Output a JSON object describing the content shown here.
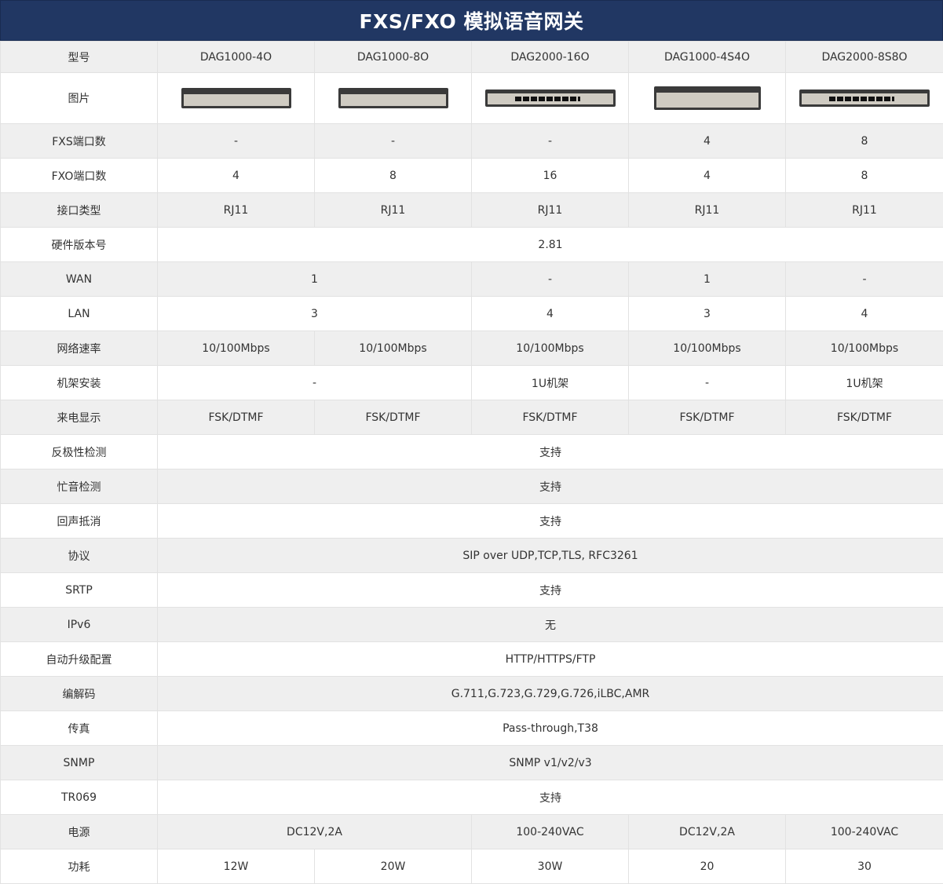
{
  "title": "FXS/FXO 模拟语音网关",
  "models": [
    "DAG1000-4O",
    "DAG1000-8O",
    "DAG2000-16O",
    "DAG1000-4S4O",
    "DAG2000-8S8O"
  ],
  "header_label": "型号",
  "image_label": "图片",
  "device_images": [
    {
      "model": "DAG1000-4O",
      "style": "compact",
      "ports": 0
    },
    {
      "model": "DAG1000-8O",
      "style": "compact",
      "ports": 0
    },
    {
      "model": "DAG2000-16O",
      "style": "rack",
      "ports": 16
    },
    {
      "model": "DAG1000-4S4O",
      "style": "tall",
      "ports": 0
    },
    {
      "model": "DAG2000-8S8O",
      "style": "rack",
      "ports": 16
    }
  ],
  "rows": [
    {
      "label": "FXS端口数",
      "cells": [
        {
          "text": "-",
          "span": 1
        },
        {
          "text": "-",
          "span": 1
        },
        {
          "text": "-",
          "span": 1
        },
        {
          "text": "4",
          "span": 1
        },
        {
          "text": "8",
          "span": 1
        }
      ]
    },
    {
      "label": "FXO端口数",
      "cells": [
        {
          "text": "4",
          "span": 1
        },
        {
          "text": "8",
          "span": 1
        },
        {
          "text": "16",
          "span": 1
        },
        {
          "text": "4",
          "span": 1
        },
        {
          "text": "8",
          "span": 1
        }
      ]
    },
    {
      "label": "接口类型",
      "cells": [
        {
          "text": "RJ11",
          "span": 1
        },
        {
          "text": "RJ11",
          "span": 1
        },
        {
          "text": "RJ11",
          "span": 1
        },
        {
          "text": "RJ11",
          "span": 1
        },
        {
          "text": "RJ11",
          "span": 1
        }
      ]
    },
    {
      "label": "硬件版本号",
      "cells": [
        {
          "text": "2.81",
          "span": 5
        }
      ]
    },
    {
      "label": "WAN",
      "cells": [
        {
          "text": "1",
          "span": 2
        },
        {
          "text": "-",
          "span": 1
        },
        {
          "text": "1",
          "span": 1
        },
        {
          "text": "-",
          "span": 1
        }
      ]
    },
    {
      "label": "LAN",
      "cells": [
        {
          "text": "3",
          "span": 2
        },
        {
          "text": "4",
          "span": 1
        },
        {
          "text": "3",
          "span": 1
        },
        {
          "text": "4",
          "span": 1
        }
      ]
    },
    {
      "label": "网络速率",
      "cells": [
        {
          "text": "10/100Mbps",
          "span": 1
        },
        {
          "text": "10/100Mbps",
          "span": 1
        },
        {
          "text": "10/100Mbps",
          "span": 1
        },
        {
          "text": "10/100Mbps",
          "span": 1
        },
        {
          "text": "10/100Mbps",
          "span": 1
        }
      ]
    },
    {
      "label": "机架安装",
      "cells": [
        {
          "text": "-",
          "span": 2
        },
        {
          "text": "1U机架",
          "span": 1
        },
        {
          "text": "-",
          "span": 1
        },
        {
          "text": "1U机架",
          "span": 1
        }
      ]
    },
    {
      "label": "来电显示",
      "cells": [
        {
          "text": "FSK/DTMF",
          "span": 1
        },
        {
          "text": "FSK/DTMF",
          "span": 1
        },
        {
          "text": "FSK/DTMF",
          "span": 1
        },
        {
          "text": "FSK/DTMF",
          "span": 1
        },
        {
          "text": "FSK/DTMF",
          "span": 1
        }
      ]
    },
    {
      "label": "反极性检测",
      "cells": [
        {
          "text": "支持",
          "span": 5
        }
      ]
    },
    {
      "label": "忙音检测",
      "cells": [
        {
          "text": "支持",
          "span": 5
        }
      ]
    },
    {
      "label": "回声抵消",
      "cells": [
        {
          "text": "支持",
          "span": 5
        }
      ]
    },
    {
      "label": "协议",
      "cells": [
        {
          "text": "SIP over UDP,TCP,TLS, RFC3261",
          "span": 5
        }
      ]
    },
    {
      "label": "SRTP",
      "cells": [
        {
          "text": "支持",
          "span": 5
        }
      ]
    },
    {
      "label": "IPv6",
      "cells": [
        {
          "text": "无",
          "span": 5
        }
      ]
    },
    {
      "label": "自动升级配置",
      "cells": [
        {
          "text": "HTTP/HTTPS/FTP",
          "span": 5
        }
      ]
    },
    {
      "label": "编解码",
      "cells": [
        {
          "text": "G.711,G.723,G.729,G.726,iLBC,AMR",
          "span": 5
        }
      ]
    },
    {
      "label": "传真",
      "cells": [
        {
          "text": "Pass-through,T38",
          "span": 5
        }
      ]
    },
    {
      "label": "SNMP",
      "cells": [
        {
          "text": "SNMP v1/v2/v3",
          "span": 5
        }
      ]
    },
    {
      "label": "TR069",
      "cells": [
        {
          "text": "支持",
          "span": 5
        }
      ]
    },
    {
      "label": "电源",
      "cells": [
        {
          "text": "DC12V,2A",
          "span": 2
        },
        {
          "text": "100-240VAC",
          "span": 1
        },
        {
          "text": "DC12V,2A",
          "span": 1
        },
        {
          "text": "100-240VAC",
          "span": 1
        }
      ]
    },
    {
      "label": "功耗",
      "cells": [
        {
          "text": "12W",
          "span": 1
        },
        {
          "text": "20W",
          "span": 1
        },
        {
          "text": "30W",
          "span": 1
        },
        {
          "text": "20",
          "span": 1
        },
        {
          "text": "30",
          "span": 1
        }
      ]
    }
  ],
  "colors": {
    "title_bar": "#213763",
    "row_gray": "#efefef",
    "row_white": "#ffffff",
    "grid": "#e2e2e2"
  }
}
